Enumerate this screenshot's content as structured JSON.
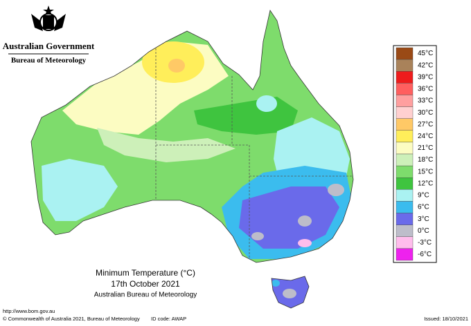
{
  "header": {
    "agency": "Australian Government",
    "bureau": "Bureau of Meteorology"
  },
  "map": {
    "title": "Minimum Temperature (°C)",
    "date": "17th October 2021",
    "source": "Australian Bureau of Meteorology"
  },
  "legend": {
    "items": [
      {
        "label": "45°C",
        "color": "#9a4a16"
      },
      {
        "label": "42°C",
        "color": "#a9825a"
      },
      {
        "label": "39°C",
        "color": "#ee1c1c"
      },
      {
        "label": "36°C",
        "color": "#ff5f5f"
      },
      {
        "label": "33°C",
        "color": "#ff9f9f"
      },
      {
        "label": "30°C",
        "color": "#ffd0d0"
      },
      {
        "label": "27°C",
        "color": "#ffc966"
      },
      {
        "label": "24°C",
        "color": "#ffee5a"
      },
      {
        "label": "21°C",
        "color": "#fcfcc2"
      },
      {
        "label": "18°C",
        "color": "#cdf0b9"
      },
      {
        "label": "15°C",
        "color": "#7edc6c"
      },
      {
        "label": "12°C",
        "color": "#3fc43f"
      },
      {
        "label": "9°C",
        "color": "#aaf2f2"
      },
      {
        "label": "6°C",
        "color": "#3bbcee"
      },
      {
        "label": "3°C",
        "color": "#6a6aea"
      },
      {
        "label": "0°C",
        "color": "#bdbdca"
      },
      {
        "label": "-3°C",
        "color": "#ffbdec"
      },
      {
        "label": "-6°C",
        "color": "#ee22ee"
      }
    ]
  },
  "footer": {
    "url": "http://www.bom.gov.au",
    "copyright": "© Commonwealth of Australia 2021, Bureau of Meteorology",
    "id_code": "ID code: AWAP",
    "issued": "Issued: 18/10/2021"
  }
}
